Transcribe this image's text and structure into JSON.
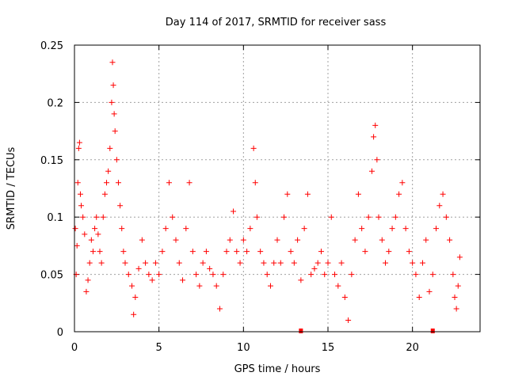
{
  "chart_data": {
    "type": "scatter",
    "title": "Day 114 of 2017, SRMTID for receiver sass",
    "xlabel": "GPS time / hours",
    "ylabel": "SRMTID / TECUs",
    "xlim": [
      0,
      24
    ],
    "ylim": [
      0,
      0.25
    ],
    "x_ticks": [
      0,
      5,
      10,
      15,
      20
    ],
    "x_tick_labels": [
      "0",
      "5",
      "10",
      "15",
      "20"
    ],
    "y_ticks": [
      0,
      0.05,
      0.1,
      0.15,
      0.2,
      0.25
    ],
    "y_tick_labels": [
      "0",
      "0.05",
      "0.1",
      "0.15",
      "0.2",
      "0.25"
    ],
    "grid": true,
    "marker": "+",
    "color": "#ff0000",
    "data_end_hours": 22.8,
    "missing_data_markers": [
      13.4,
      21.2
    ],
    "series": [
      {
        "name": "SRMTID",
        "points": [
          [
            0.05,
            0.09
          ],
          [
            0.1,
            0.05
          ],
          [
            0.15,
            0.075
          ],
          [
            0.2,
            0.13
          ],
          [
            0.25,
            0.16
          ],
          [
            0.3,
            0.165
          ],
          [
            0.35,
            0.12
          ],
          [
            0.4,
            0.11
          ],
          [
            0.5,
            0.1
          ],
          [
            0.6,
            0.085
          ],
          [
            0.7,
            0.035
          ],
          [
            0.8,
            0.045
          ],
          [
            0.9,
            0.06
          ],
          [
            1.0,
            0.08
          ],
          [
            1.1,
            0.07
          ],
          [
            1.2,
            0.09
          ],
          [
            1.3,
            0.1
          ],
          [
            1.4,
            0.085
          ],
          [
            1.5,
            0.07
          ],
          [
            1.6,
            0.06
          ],
          [
            1.7,
            0.1
          ],
          [
            1.8,
            0.12
          ],
          [
            1.9,
            0.13
          ],
          [
            2.0,
            0.14
          ],
          [
            2.1,
            0.16
          ],
          [
            2.2,
            0.2
          ],
          [
            2.25,
            0.235
          ],
          [
            2.3,
            0.215
          ],
          [
            2.35,
            0.19
          ],
          [
            2.4,
            0.175
          ],
          [
            2.5,
            0.15
          ],
          [
            2.6,
            0.13
          ],
          [
            2.7,
            0.11
          ],
          [
            2.8,
            0.09
          ],
          [
            2.9,
            0.07
          ],
          [
            3.0,
            0.06
          ],
          [
            3.2,
            0.05
          ],
          [
            3.4,
            0.04
          ],
          [
            3.5,
            0.015
          ],
          [
            3.6,
            0.03
          ],
          [
            3.8,
            0.055
          ],
          [
            4.0,
            0.08
          ],
          [
            4.2,
            0.06
          ],
          [
            4.4,
            0.05
          ],
          [
            4.6,
            0.045
          ],
          [
            4.8,
            0.06
          ],
          [
            5.0,
            0.05
          ],
          [
            5.2,
            0.07
          ],
          [
            5.4,
            0.09
          ],
          [
            5.6,
            0.13
          ],
          [
            5.8,
            0.1
          ],
          [
            6.0,
            0.08
          ],
          [
            6.2,
            0.06
          ],
          [
            6.4,
            0.045
          ],
          [
            6.6,
            0.09
          ],
          [
            6.8,
            0.13
          ],
          [
            7.0,
            0.07
          ],
          [
            7.2,
            0.05
          ],
          [
            7.4,
            0.04
          ],
          [
            7.6,
            0.06
          ],
          [
            7.8,
            0.07
          ],
          [
            8.0,
            0.055
          ],
          [
            8.2,
            0.05
          ],
          [
            8.4,
            0.04
          ],
          [
            8.6,
            0.02
          ],
          [
            8.8,
            0.05
          ],
          [
            9.0,
            0.07
          ],
          [
            9.2,
            0.08
          ],
          [
            9.4,
            0.105
          ],
          [
            9.6,
            0.07
          ],
          [
            9.8,
            0.06
          ],
          [
            10.0,
            0.08
          ],
          [
            10.2,
            0.07
          ],
          [
            10.4,
            0.09
          ],
          [
            10.6,
            0.16
          ],
          [
            10.7,
            0.13
          ],
          [
            10.8,
            0.1
          ],
          [
            11.0,
            0.07
          ],
          [
            11.2,
            0.06
          ],
          [
            11.4,
            0.05
          ],
          [
            11.6,
            0.04
          ],
          [
            11.8,
            0.06
          ],
          [
            12.0,
            0.08
          ],
          [
            12.2,
            0.06
          ],
          [
            12.4,
            0.1
          ],
          [
            12.6,
            0.12
          ],
          [
            12.8,
            0.07
          ],
          [
            13.0,
            0.06
          ],
          [
            13.2,
            0.08
          ],
          [
            13.4,
            0.045
          ],
          [
            13.6,
            0.09
          ],
          [
            13.8,
            0.12
          ],
          [
            14.0,
            0.05
          ],
          [
            14.2,
            0.055
          ],
          [
            14.4,
            0.06
          ],
          [
            14.6,
            0.07
          ],
          [
            14.8,
            0.05
          ],
          [
            15.0,
            0.06
          ],
          [
            15.2,
            0.1
          ],
          [
            15.4,
            0.05
          ],
          [
            15.6,
            0.04
          ],
          [
            15.8,
            0.06
          ],
          [
            16.0,
            0.03
          ],
          [
            16.2,
            0.01
          ],
          [
            16.4,
            0.05
          ],
          [
            16.6,
            0.08
          ],
          [
            16.8,
            0.12
          ],
          [
            17.0,
            0.09
          ],
          [
            17.2,
            0.07
          ],
          [
            17.4,
            0.1
          ],
          [
            17.6,
            0.14
          ],
          [
            17.7,
            0.17
          ],
          [
            17.8,
            0.18
          ],
          [
            17.9,
            0.15
          ],
          [
            18.0,
            0.1
          ],
          [
            18.2,
            0.08
          ],
          [
            18.4,
            0.06
          ],
          [
            18.6,
            0.07
          ],
          [
            18.8,
            0.09
          ],
          [
            19.0,
            0.1
          ],
          [
            19.2,
            0.12
          ],
          [
            19.4,
            0.13
          ],
          [
            19.6,
            0.09
          ],
          [
            19.8,
            0.07
          ],
          [
            20.0,
            0.06
          ],
          [
            20.2,
            0.05
          ],
          [
            20.4,
            0.03
          ],
          [
            20.6,
            0.06
          ],
          [
            20.8,
            0.08
          ],
          [
            21.0,
            0.035
          ],
          [
            21.2,
            0.05
          ],
          [
            21.4,
            0.09
          ],
          [
            21.6,
            0.11
          ],
          [
            21.8,
            0.12
          ],
          [
            22.0,
            0.1
          ],
          [
            22.2,
            0.08
          ],
          [
            22.4,
            0.05
          ],
          [
            22.5,
            0.03
          ],
          [
            22.6,
            0.02
          ],
          [
            22.7,
            0.04
          ],
          [
            22.8,
            0.065
          ]
        ]
      }
    ]
  }
}
